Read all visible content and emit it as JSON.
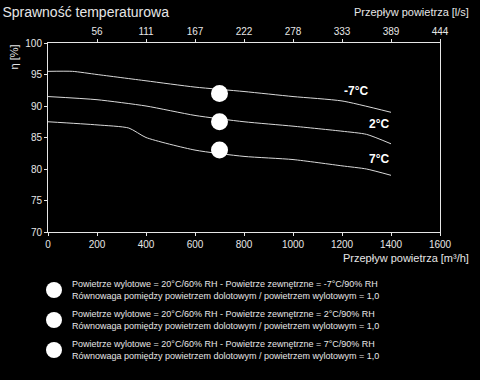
{
  "chart_data": {
    "type": "line",
    "title": "Sprawność temperaturowa",
    "x_label": "Przepływ powietrza [m³/h]",
    "x2_label": "Przepływ powietrza [l/s]",
    "y_label": "η [%]",
    "xlim": [
      0,
      1600
    ],
    "xticks": [
      0,
      200,
      400,
      600,
      800,
      1000,
      1200,
      1400,
      1600
    ],
    "x2lim": [
      0,
      1600
    ],
    "x2ticks": [
      {
        "value": 200,
        "label": "56"
      },
      {
        "value": 400,
        "label": "111"
      },
      {
        "value": 600,
        "label": "167"
      },
      {
        "value": 800,
        "label": "222"
      },
      {
        "value": 1000,
        "label": "278"
      },
      {
        "value": 1200,
        "label": "333"
      },
      {
        "value": 1400,
        "label": "389"
      },
      {
        "value": 1600,
        "label": "444"
      }
    ],
    "ylim": [
      70,
      100
    ],
    "yticks": [
      70,
      75,
      80,
      85,
      90,
      95,
      100
    ],
    "grid": false,
    "series": [
      {
        "name": "-7°C",
        "color": "#d9d9d9",
        "line_style": "solid",
        "x": [
          0,
          100,
          200,
          400,
          600,
          800,
          1000,
          1200,
          1400
        ],
        "values": [
          95.5,
          95.5,
          95,
          94,
          93,
          92.3,
          91.5,
          90.8,
          89
        ],
        "point": {
          "x": 700,
          "y": 92,
          "color": "#ffffff",
          "marker": "circle"
        },
        "description": [
          "Powietrze wylotowe = 20°C/60% RH - Powietrze zewnętrzne = -7°C/90% RH",
          "Równowaga pomiędzy powietrzem dolotowym / powietrzem wylotowym = 1,0"
        ]
      },
      {
        "name": "2°C",
        "color": "#d9d9d9",
        "line_style": "solid",
        "x": [
          0,
          200,
          400,
          600,
          800,
          1000,
          1200,
          1300,
          1400
        ],
        "values": [
          91.5,
          91,
          90,
          88.5,
          87.5,
          86.8,
          86,
          85.5,
          84
        ],
        "point": {
          "x": 700,
          "y": 87.5,
          "color": "#ffffff",
          "marker": "circle"
        },
        "description": [
          "Powietrze wylotowe = 20°C/60% RH - Powietrze zewnętrzne = 2°C/90% RH",
          "Równowaga pomiędzy powietrzem dolotowym / powietrzem wylotowym = 1,0"
        ]
      },
      {
        "name": "7°C",
        "color": "#d9d9d9",
        "line_style": "solid",
        "x": [
          0,
          200,
          330,
          400,
          600,
          800,
          1000,
          1200,
          1300,
          1400
        ],
        "values": [
          87.5,
          87,
          86.5,
          85,
          83,
          82,
          81.5,
          80.5,
          80,
          79
        ],
        "point": {
          "x": 700,
          "y": 83,
          "color": "#ffffff",
          "marker": "circle"
        },
        "description": [
          "Powietrze wylotowe = 20°C/60% RH - Powietrze zewnętrzne = 7°C/90% RH",
          "Równowaga pomiędzy powietrzem dolotowym / powietrzem wylotowym = 1,0"
        ]
      }
    ]
  }
}
